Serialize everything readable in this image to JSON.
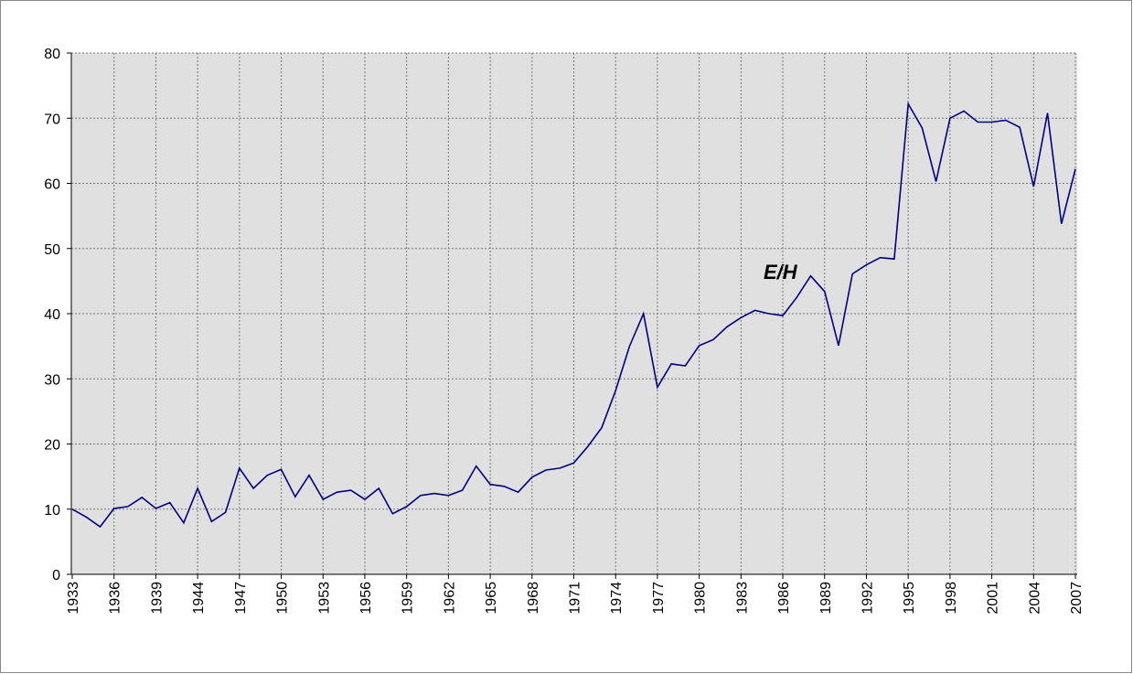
{
  "chart_data": {
    "type": "line",
    "annotation": "E/H",
    "categories": [
      "1933",
      null,
      null,
      "1936",
      null,
      null,
      "1939",
      null,
      null,
      "1944",
      null,
      null,
      "1947",
      null,
      null,
      "1950",
      null,
      null,
      "1953",
      null,
      null,
      "1956",
      null,
      null,
      "1959",
      null,
      null,
      "1962",
      null,
      null,
      "1965",
      null,
      null,
      "1968",
      null,
      null,
      "1971",
      null,
      null,
      "1974",
      null,
      null,
      "1977",
      null,
      null,
      "1980",
      null,
      null,
      "1983",
      null,
      null,
      "1986",
      null,
      null,
      "1989",
      null,
      null,
      "1992",
      null,
      null,
      "1995",
      null,
      null,
      "1998",
      null,
      null,
      "2001",
      null,
      null,
      "2004",
      null,
      null,
      "2007"
    ],
    "values": [
      10,
      8.8,
      7.3,
      10.1,
      10.4,
      11.8,
      10.1,
      11,
      7.9,
      13.2,
      8.1,
      9.5,
      16.3,
      13.2,
      15.2,
      16.1,
      11.9,
      15.2,
      11.5,
      12.6,
      12.9,
      11.5,
      13.2,
      9.3,
      10.4,
      12.1,
      12.4,
      12.1,
      12.9,
      16.6,
      13.8,
      13.5,
      12.6,
      14.9,
      16,
      16.3,
      17.1,
      19.6,
      22.5,
      28.2,
      35,
      40,
      28.7,
      32.3,
      32,
      35.1,
      36,
      38,
      39.4,
      40.5,
      40,
      39.7,
      42.5,
      45.8,
      43.4,
      35.1,
      46.1,
      47.5,
      48.6,
      48.4,
      72.2,
      68.5,
      60.3,
      70,
      71.1,
      69.4,
      69.4,
      69.7,
      68.6,
      59.5,
      70.8,
      53.8,
      62.2
    ],
    "color": "#000080",
    "ylim": [
      0,
      80
    ],
    "yticks": [
      0,
      10,
      20,
      30,
      40,
      50,
      60,
      70,
      80
    ],
    "grid": true
  }
}
